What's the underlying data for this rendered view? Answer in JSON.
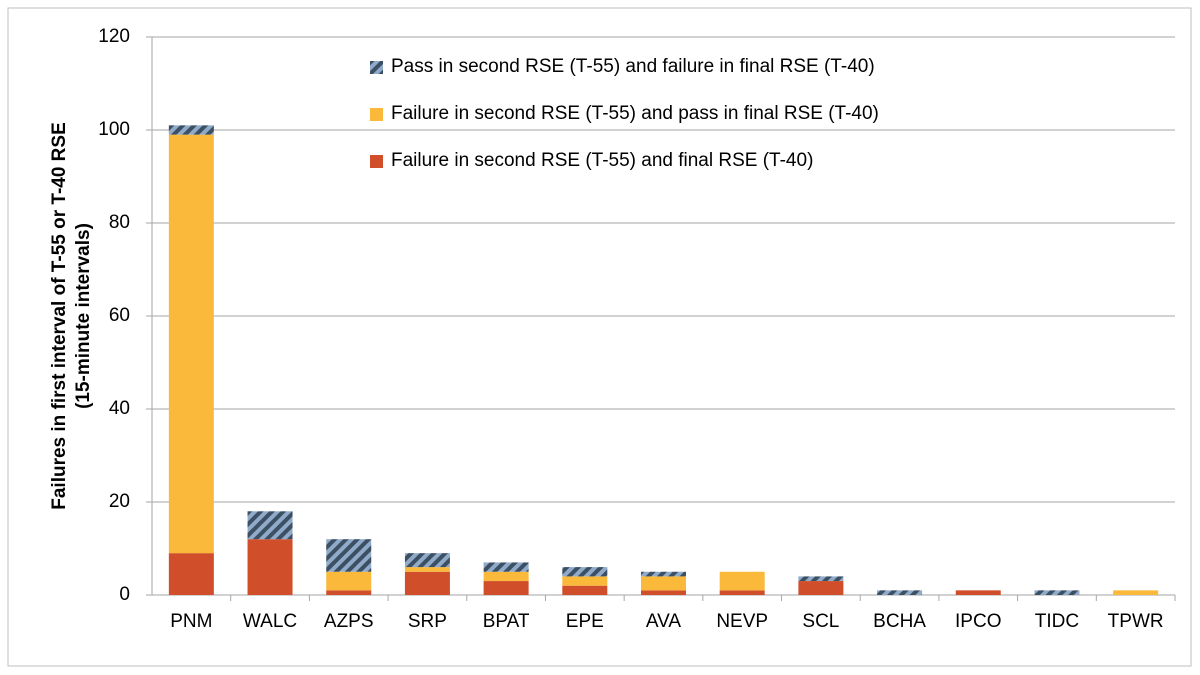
{
  "chart_data": {
    "type": "stacked-bar",
    "ylabel": [
      "Failures in first interval of T-55 or T-40 RSE",
      "(15-minute intervals)"
    ],
    "categories": [
      "PNM",
      "WALC",
      "AZPS",
      "SRP",
      "BPAT",
      "EPE",
      "AVA",
      "NEVP",
      "SCL",
      "BCHA",
      "IPCO",
      "TIDC",
      "TPWR"
    ],
    "series": [
      {
        "name": "Failure in second RSE (T-55) and final RSE (T-40)",
        "color": "#d04e2a",
        "values": [
          9,
          12,
          1,
          5,
          3,
          2,
          1,
          1,
          3,
          0,
          1,
          0,
          0
        ]
      },
      {
        "name": "Failure in second RSE (T-55) and pass in final RSE (T-40)",
        "color": "#fbb93b",
        "values": [
          90,
          0,
          4,
          1,
          2,
          2,
          3,
          4,
          0,
          0,
          0,
          0,
          1
        ]
      },
      {
        "name": "Pass in second RSE (T-55) and failure in final RSE (T-40)",
        "color": "#8fabc9",
        "pattern": "hatch",
        "values": [
          2,
          6,
          7,
          3,
          2,
          2,
          1,
          0,
          1,
          1,
          0,
          1,
          0
        ]
      }
    ],
    "ylim": [
      0,
      120
    ],
    "yticks": [
      0,
      20,
      40,
      60,
      80,
      100,
      120
    ],
    "grid": true,
    "legend": "top"
  }
}
